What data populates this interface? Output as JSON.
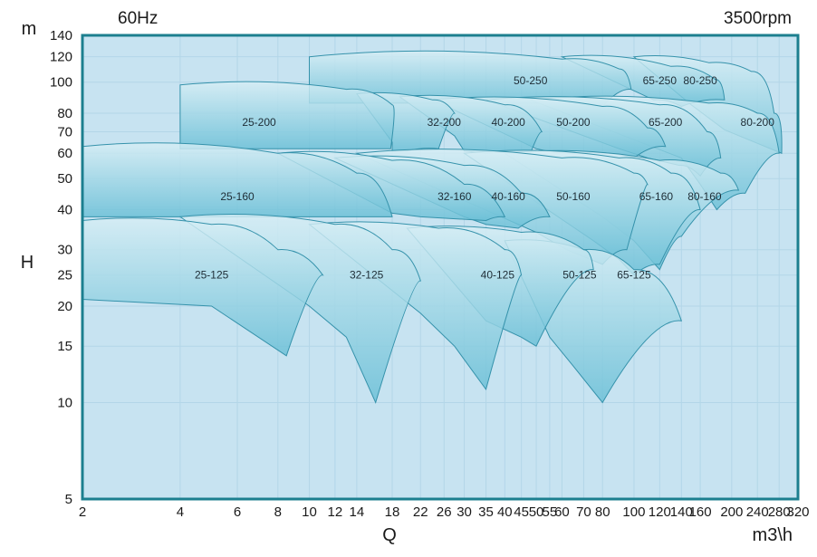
{
  "chart_data": {
    "type": "area",
    "title": "",
    "frequency_label": "60Hz",
    "speed_label": "3500rpm",
    "xlabel": "Q",
    "ylabel": "H",
    "x_unit": "m3\\h",
    "y_unit": "m",
    "x_scale": "log",
    "y_scale": "log",
    "xlim": [
      2,
      320
    ],
    "ylim": [
      5,
      140
    ],
    "x_ticks": [
      "2",
      "4",
      "6",
      "8",
      "10",
      "12",
      "14",
      "18",
      "22",
      "26",
      "30",
      "35",
      "40",
      "45",
      "50",
      "55",
      "60",
      "70",
      "80",
      "100",
      "120",
      "140",
      "160",
      "200",
      "240",
      "280",
      "320"
    ],
    "y_ticks": [
      "5",
      "10",
      "15",
      "20",
      "25",
      "30",
      "40",
      "50",
      "60",
      "70",
      "80",
      "100",
      "120",
      "140"
    ],
    "grid": true,
    "legend": "none",
    "colors": {
      "plot_bg": "#c7e3f1",
      "grid": "#b3d6e8",
      "frame": "#1c7f8f",
      "region_top": "#d7eef5",
      "region_bottom": "#69bfd6",
      "region_stroke": "#3592ab"
    },
    "regions": [
      {
        "label": "80-250",
        "label_at": [
          160,
          101
        ],
        "outline": [
          [
            100,
            120
          ],
          [
            170,
            115
          ],
          [
            230,
            108
          ],
          [
            270,
            80
          ],
          [
            285,
            60
          ]
        ],
        "bottom": [
          [
            190,
            71
          ],
          [
            150,
            85
          ]
        ]
      },
      {
        "label": "65-250",
        "label_at": [
          120,
          101
        ],
        "outline": [
          [
            60,
            120
          ],
          [
            130,
            112
          ],
          [
            178,
            102
          ],
          [
            190,
            88
          ],
          [
            140,
            84
          ],
          [
            115,
            88
          ]
        ],
        "bottom": [
          [
            115,
            88
          ],
          [
            100,
            94
          ]
        ]
      },
      {
        "label": "50-250",
        "label_at": [
          48,
          101
        ],
        "outline": [
          [
            10,
            120
          ],
          [
            60,
            118
          ],
          [
            90,
            110
          ],
          [
            98,
            95
          ],
          [
            80,
            84
          ],
          [
            60,
            86
          ]
        ],
        "bottom": [
          [
            10,
            86
          ],
          [
            10,
            120
          ]
        ]
      },
      {
        "label": "80-200",
        "label_at": [
          240,
          75
        ],
        "outline": [
          [
            48,
            88
          ],
          [
            170,
            86
          ],
          [
            240,
            80
          ],
          [
            280,
            60
          ],
          [
            220,
            45
          ],
          [
            180,
            40
          ]
        ],
        "bottom": [
          [
            160,
            48
          ],
          [
            140,
            58
          ]
        ]
      },
      {
        "label": "65-200",
        "label_at": [
          125,
          75
        ],
        "outline": [
          [
            35,
            88
          ],
          [
            120,
            85
          ],
          [
            168,
            70
          ],
          [
            185,
            58
          ],
          [
            160,
            51
          ],
          [
            138,
            55
          ]
        ],
        "bottom": [
          [
            110,
            58
          ],
          [
            90,
            62
          ]
        ]
      },
      {
        "label": "50-200",
        "label_at": [
          65,
          75
        ],
        "outline": [
          [
            24,
            88
          ],
          [
            80,
            84
          ],
          [
            110,
            72
          ],
          [
            125,
            63
          ],
          [
            100,
            58
          ],
          [
            70,
            60
          ]
        ],
        "bottom": [
          [
            58,
            60
          ],
          [
            50,
            62
          ]
        ]
      },
      {
        "label": "40-200",
        "label_at": [
          41,
          75
        ],
        "outline": [
          [
            19,
            90
          ],
          [
            40,
            85
          ],
          [
            52,
            70
          ],
          [
            48,
            60
          ],
          [
            35,
            60
          ]
        ],
        "bottom": [
          [
            30,
            61
          ],
          [
            28,
            68
          ]
        ]
      },
      {
        "label": "32-200",
        "label_at": [
          26,
          75
        ],
        "outline": [
          [
            14,
            92
          ],
          [
            24,
            88
          ],
          [
            28,
            80
          ],
          [
            25,
            62
          ],
          [
            20,
            61
          ]
        ],
        "bottom": [
          [
            18,
            61
          ],
          [
            18,
            65
          ]
        ]
      },
      {
        "label": "25-200",
        "label_at": [
          7,
          75
        ],
        "outline": [
          [
            4,
            98
          ],
          [
            13,
            95
          ],
          [
            18,
            85
          ],
          [
            17.8,
            62
          ]
        ],
        "bottom": [
          [
            4,
            62
          ],
          [
            4,
            98
          ]
        ]
      },
      {
        "label": "80-160",
        "label_at": [
          165,
          44
        ],
        "outline": [
          [
            40,
            60
          ],
          [
            120,
            57
          ],
          [
            185,
            52
          ],
          [
            210,
            46
          ],
          [
            140,
            33
          ],
          [
            120,
            26
          ]
        ],
        "bottom": [
          [
            100,
            32
          ],
          [
            80,
            38
          ]
        ]
      },
      {
        "label": "65-160",
        "label_at": [
          117,
          44
        ],
        "outline": [
          [
            30,
            60
          ],
          [
            90,
            58
          ],
          [
            130,
            52
          ],
          [
            160,
            40
          ],
          [
            120,
            27
          ],
          [
            100,
            25
          ]
        ],
        "bottom": [
          [
            90,
            28
          ],
          [
            75,
            32
          ]
        ]
      },
      {
        "label": "50-160",
        "label_at": [
          65,
          44
        ],
        "outline": [
          [
            14,
            60
          ],
          [
            60,
            58
          ],
          [
            100,
            52
          ],
          [
            110,
            48
          ],
          [
            95,
            30
          ],
          [
            80,
            27
          ]
        ],
        "bottom": [
          [
            62,
            30
          ],
          [
            50,
            34
          ]
        ]
      },
      {
        "label": "40-160",
        "label_at": [
          41,
          44
        ],
        "outline": [
          [
            12,
            58
          ],
          [
            30,
            55
          ],
          [
            45,
            45
          ],
          [
            55,
            38
          ],
          [
            44,
            35
          ]
        ],
        "bottom": [
          [
            35,
            36
          ],
          [
            30,
            38
          ]
        ]
      },
      {
        "label": "32-160",
        "label_at": [
          28,
          44
        ],
        "outline": [
          [
            8,
            60
          ],
          [
            18,
            57
          ],
          [
            30,
            48
          ],
          [
            40,
            38
          ],
          [
            35,
            37
          ]
        ],
        "bottom": [
          [
            22,
            38
          ],
          [
            18,
            39
          ]
        ]
      },
      {
        "label": "25-160",
        "label_at": [
          6,
          44
        ],
        "outline": [
          [
            2,
            63
          ],
          [
            8,
            60
          ],
          [
            14,
            52
          ],
          [
            18,
            38
          ]
        ],
        "bottom": [
          [
            2,
            38
          ],
          [
            2,
            63
          ]
        ]
      },
      {
        "label": "65-125",
        "label_at": [
          100,
          25
        ],
        "outline": [
          [
            40,
            32
          ],
          [
            70,
            30
          ],
          [
            100,
            26
          ],
          [
            140,
            18
          ],
          [
            80,
            10
          ]
        ],
        "bottom": [
          [
            65,
            13
          ],
          [
            55,
            16
          ]
        ]
      },
      {
        "label": "50-125",
        "label_at": [
          68,
          25
        ],
        "outline": [
          [
            20,
            35
          ],
          [
            45,
            34
          ],
          [
            70,
            30
          ],
          [
            75,
            26
          ],
          [
            50,
            15
          ]
        ],
        "bottom": [
          [
            45,
            16
          ],
          [
            35,
            18
          ]
        ]
      },
      {
        "label": "40-125",
        "label_at": [
          38,
          25
        ],
        "outline": [
          [
            10,
            36
          ],
          [
            25,
            35
          ],
          [
            40,
            30
          ],
          [
            45,
            25
          ],
          [
            35,
            11
          ]
        ],
        "bottom": [
          [
            28,
            15
          ],
          [
            22,
            19
          ]
        ]
      },
      {
        "label": "32-125",
        "label_at": [
          15,
          25
        ],
        "outline": [
          [
            4,
            38
          ],
          [
            12,
            36
          ],
          [
            18,
            30
          ],
          [
            22,
            24
          ],
          [
            16,
            10
          ]
        ],
        "bottom": [
          [
            13,
            16
          ],
          [
            10,
            20
          ]
        ]
      },
      {
        "label": "25-125",
        "label_at": [
          5,
          25
        ],
        "outline": [
          [
            2,
            37
          ],
          [
            5,
            36
          ],
          [
            8,
            30
          ],
          [
            11,
            25
          ],
          [
            8.5,
            14
          ]
        ],
        "bottom": [
          [
            5,
            20
          ],
          [
            2,
            21
          ]
        ]
      }
    ]
  }
}
